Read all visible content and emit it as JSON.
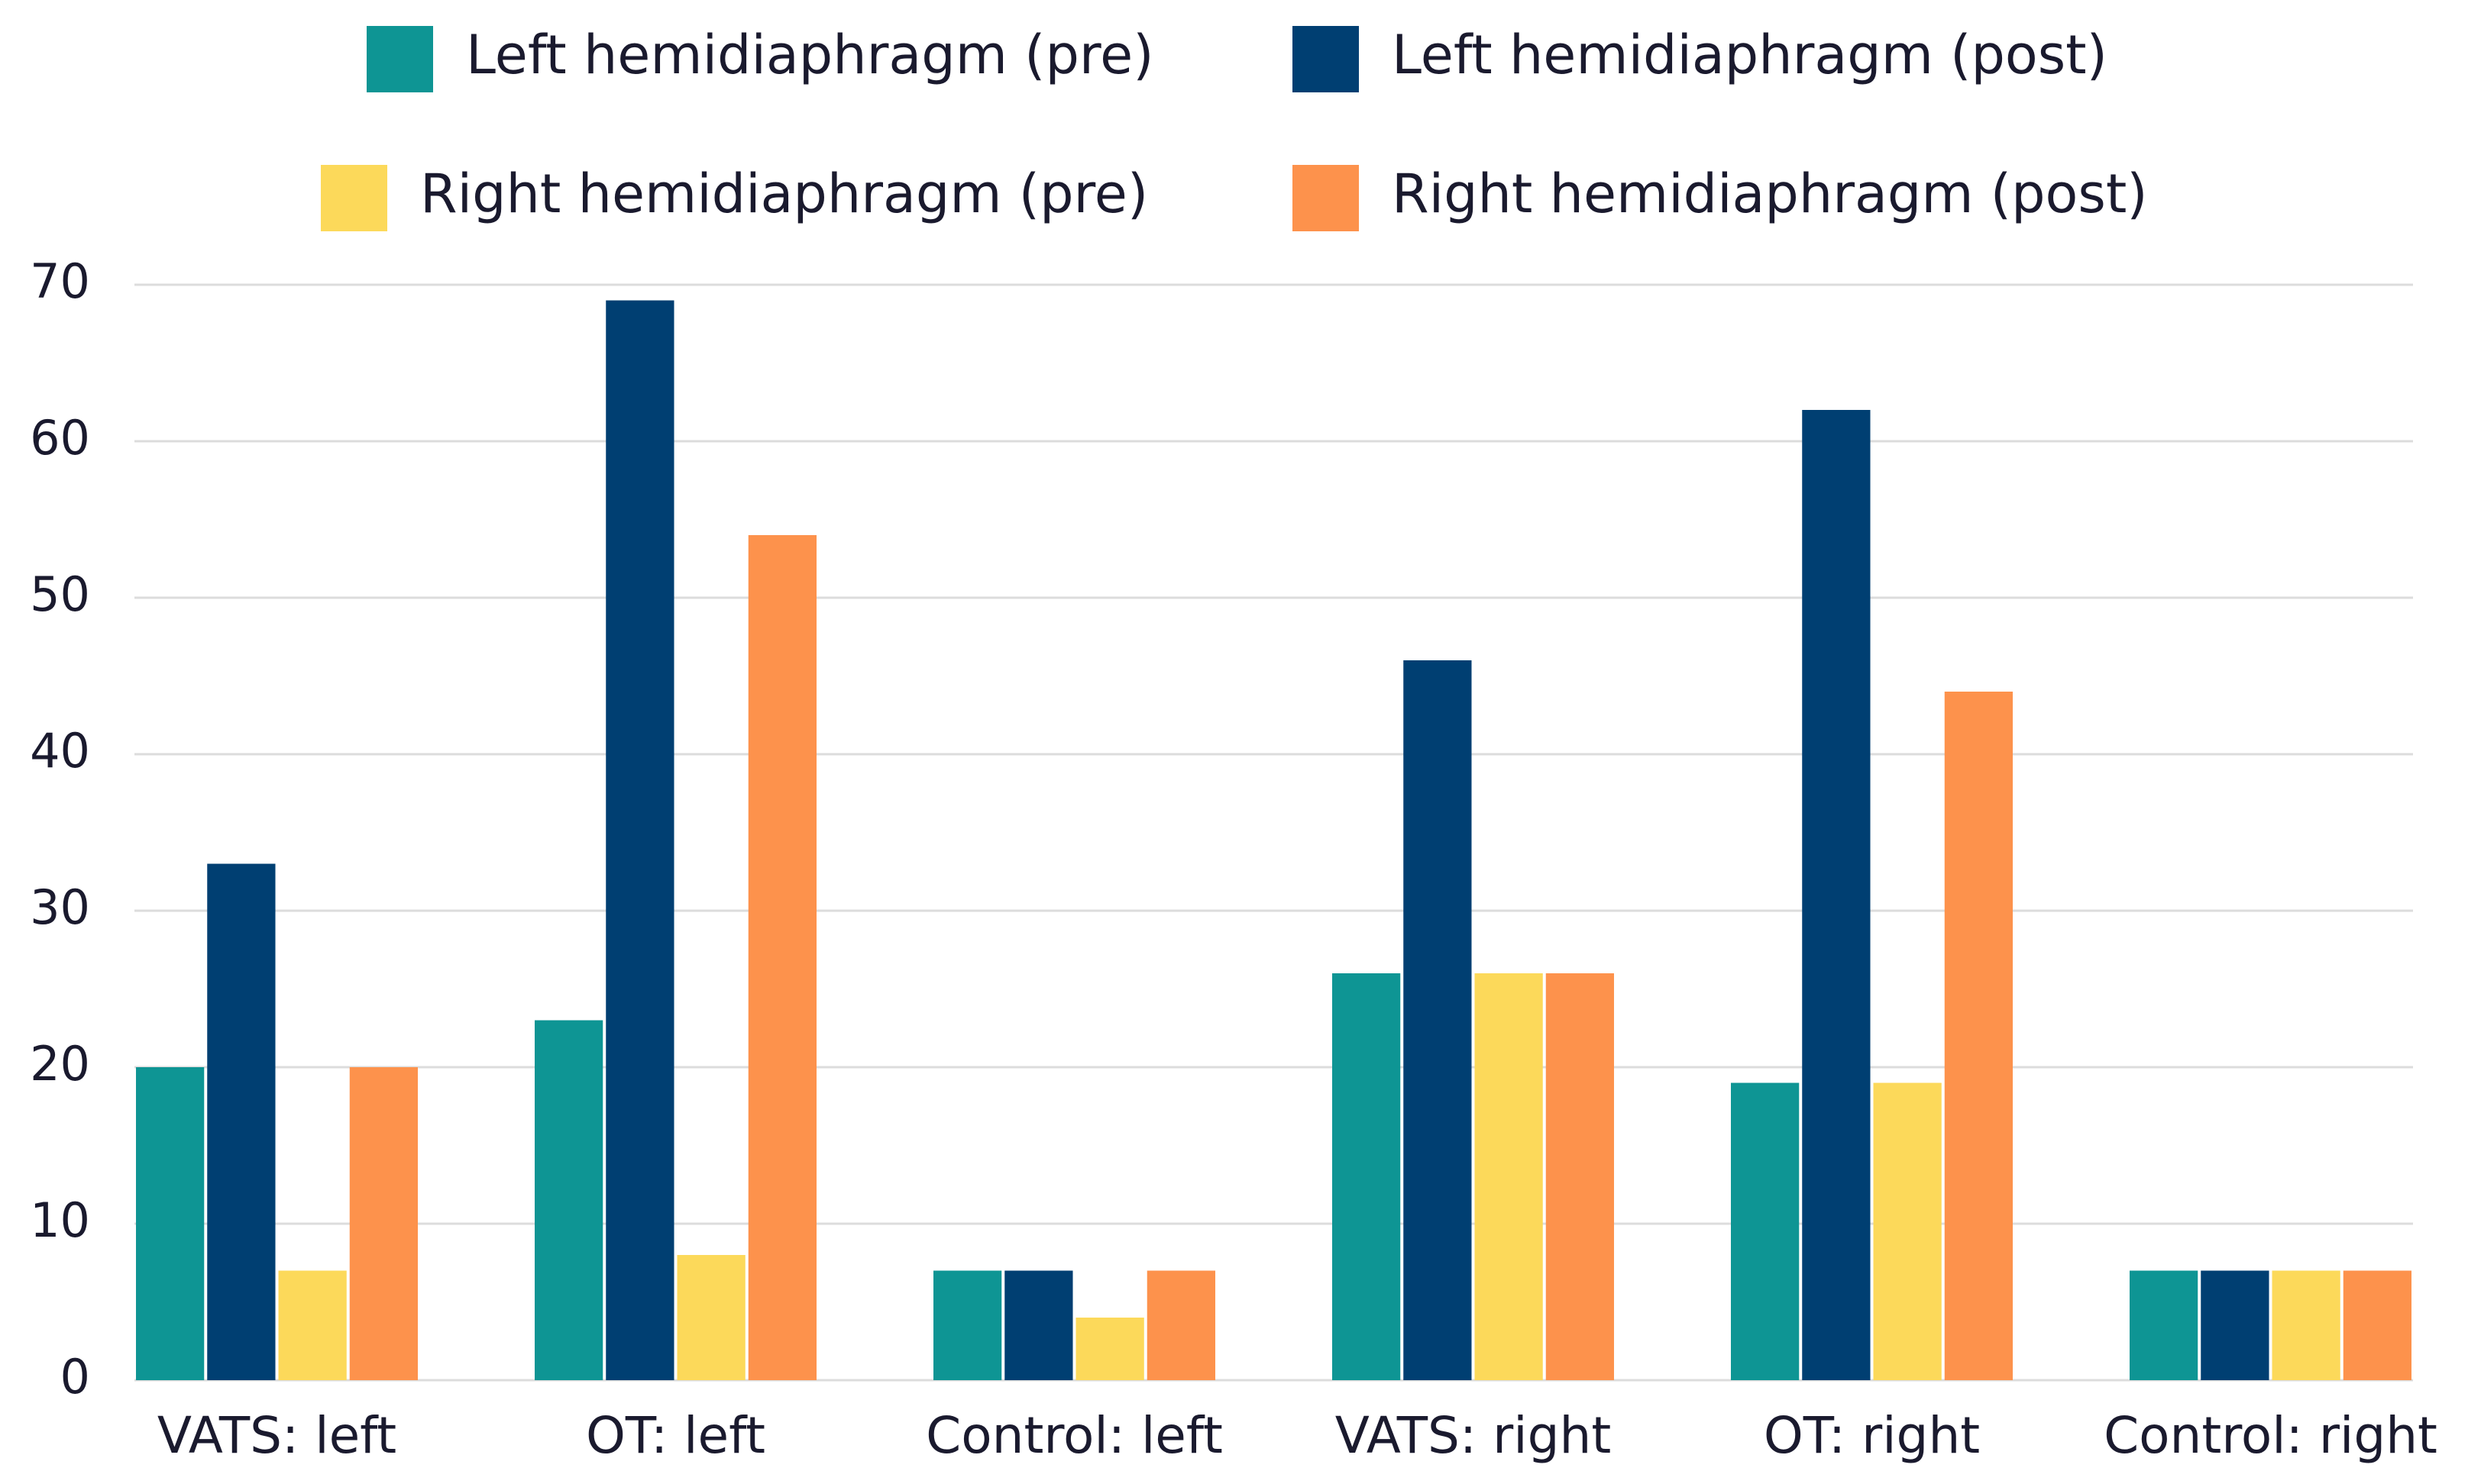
{
  "chart_data": {
    "type": "bar",
    "categories": [
      "VATS: left",
      "OT: left",
      "Control: left",
      "VATS: right",
      "OT: right",
      "Control: right"
    ],
    "series": [
      {
        "name": "Left hemidiaphragm (pre)",
        "color": "#0e9594",
        "values": [
          20,
          23,
          7,
          26,
          19,
          7
        ]
      },
      {
        "name": "Left hemidiaphragm (post)",
        "color": "#003f72",
        "values": [
          33,
          69,
          7,
          46,
          62,
          7
        ]
      },
      {
        "name": "Right hemidiaphragm (pre)",
        "color": "#fcd95a",
        "values": [
          7,
          8,
          4,
          26,
          19,
          7
        ]
      },
      {
        "name": "Right hemidiaphragm (post)",
        "color": "#fd924c",
        "values": [
          20,
          54,
          7,
          26,
          44,
          7
        ]
      }
    ],
    "ylim": [
      0,
      70
    ],
    "yticks": [
      0,
      10,
      20,
      30,
      40,
      50,
      60,
      70
    ],
    "grid": true,
    "legend": "top"
  }
}
